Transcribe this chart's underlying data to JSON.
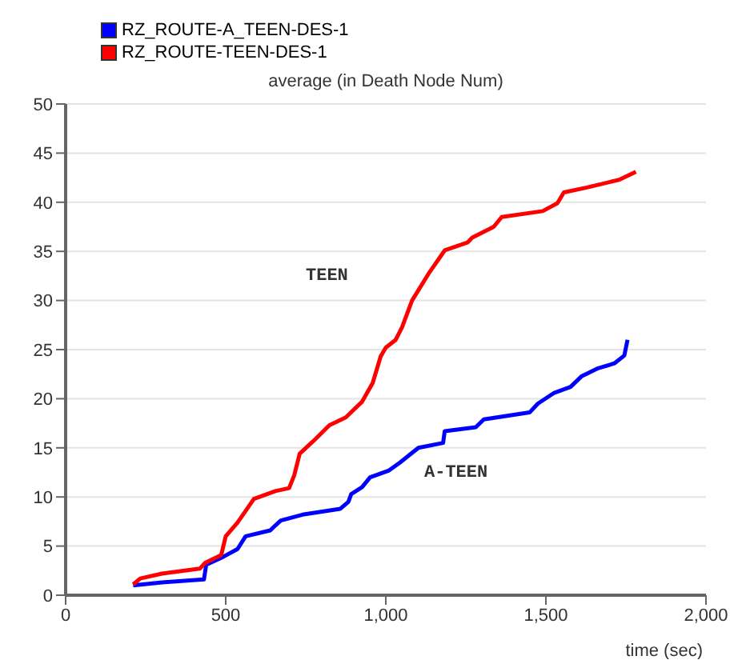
{
  "chart_data": {
    "type": "line",
    "title": "average (in Death Node Num)",
    "xlabel": "time (sec)",
    "xlim": [
      0,
      2000
    ],
    "xticks": [
      0,
      500,
      {
        "value": 1000,
        "label": "1,000"
      },
      {
        "value": 1500,
        "label": "1,500"
      },
      {
        "value": 2000,
        "label": "2,000"
      }
    ],
    "ylim": [
      0,
      50
    ],
    "yticks": [
      0,
      5,
      10,
      15,
      20,
      25,
      30,
      35,
      40,
      45,
      50
    ],
    "grid": "y",
    "legend": "top left",
    "marker": "none",
    "line_style": "solid",
    "annotations": [
      "TEEN",
      "A-TEEN"
    ],
    "series": [
      {
        "name": "RZ_ROUTE-A_TEEN-DES-1",
        "color": "#0000ff",
        "x": [
          211,
          301,
          432,
          439,
          486,
          537,
          562,
          639,
          655,
          672,
          740,
          858,
          883,
          892,
          926,
          951,
          1010,
          1044,
          1102,
          1179,
          1184,
          1281,
          1306,
          1449,
          1475,
          1526,
          1577,
          1612,
          1663,
          1714,
          1745,
          1755
        ],
        "values": [
          1.0,
          1.3,
          1.6,
          3.1,
          3.8,
          4.7,
          6.0,
          6.6,
          7.1,
          7.6,
          8.2,
          8.8,
          9.5,
          10.3,
          11.0,
          12.0,
          12.7,
          13.5,
          15.0,
          15.5,
          16.7,
          17.1,
          17.9,
          18.6,
          19.5,
          20.6,
          21.2,
          22.3,
          23.1,
          23.6,
          24.4,
          26.0
        ]
      },
      {
        "name": "RZ_ROUTE-TEEN-DES-1",
        "color": "#ff0000",
        "x": [
          211,
          233,
          301,
          419,
          436,
          486,
          500,
          537,
          554,
          588,
          655,
          698,
          714,
          731,
          774,
          824,
          875,
          926,
          959,
          984,
          1000,
          1031,
          1051,
          1082,
          1133,
          1184,
          1255,
          1270,
          1337,
          1362,
          1490,
          1536,
          1556,
          1628,
          1730,
          1781
        ],
        "values": [
          1.1,
          1.7,
          2.2,
          2.7,
          3.3,
          4.1,
          6.0,
          7.4,
          8.2,
          9.8,
          10.6,
          10.9,
          12.2,
          14.4,
          15.7,
          17.3,
          18.1,
          19.7,
          21.6,
          24.3,
          25.2,
          26.0,
          27.3,
          30.0,
          32.7,
          35.1,
          35.9,
          36.4,
          37.5,
          38.5,
          39.1,
          39.9,
          41.0,
          41.5,
          42.3,
          43.1
        ]
      }
    ]
  }
}
